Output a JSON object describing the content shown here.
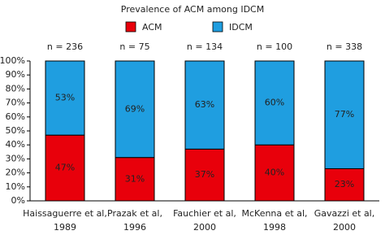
{
  "chart_data": {
    "type": "stacked_bar",
    "title": "Prevalence of ACM among IDCM",
    "categories": [
      [
        "Haissaguerre et al,",
        "1989"
      ],
      [
        "Prazak et al,",
        "1996"
      ],
      [
        "Fauchier et al,",
        "2000"
      ],
      [
        "McKenna et al,",
        "1998"
      ],
      [
        "Gavazzi et al,",
        "2000"
      ]
    ],
    "annotations": [
      "n = 236",
      "n = 75",
      "n = 134",
      "n = 100",
      "n = 338"
    ],
    "series": [
      {
        "name": "ACM",
        "color": "#e8000b",
        "values": [
          47,
          31,
          37,
          40,
          23
        ],
        "value_labels": [
          "47%",
          "31%",
          "37%",
          "40%",
          "23%"
        ]
      },
      {
        "name": "IDCM",
        "color": "#1f9ee0",
        "values": [
          53,
          69,
          63,
          60,
          77
        ],
        "value_labels": [
          "53%",
          "69%",
          "63%",
          "60%",
          "77%"
        ]
      }
    ],
    "ylim": [
      0,
      100
    ],
    "yticks": [
      {
        "value": 0,
        "label": "0%"
      },
      {
        "value": 10,
        "label": "10%"
      },
      {
        "value": 20,
        "label": "20%"
      },
      {
        "value": 30,
        "label": "30%"
      },
      {
        "value": 40,
        "label": "40%"
      },
      {
        "value": 50,
        "label": "50%"
      },
      {
        "value": 60,
        "label": "60%"
      },
      {
        "value": 70,
        "label": "70%"
      },
      {
        "value": 80,
        "label": "80%"
      },
      {
        "value": 90,
        "label": "90%"
      },
      {
        "value": 100,
        "label": "100%"
      }
    ]
  }
}
